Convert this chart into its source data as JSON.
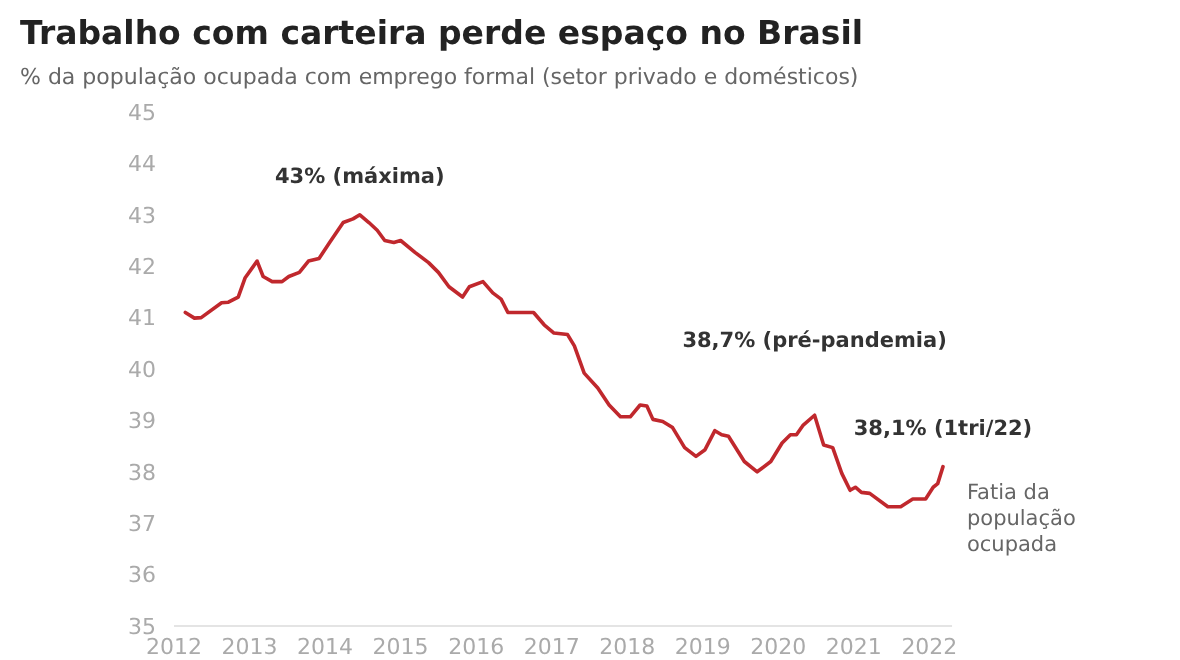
{
  "chart_data": {
    "type": "line",
    "title": "Trabalho com carteira perde espaço no Brasil",
    "subtitle": "% da população ocupada com emprego formal (setor privado e domésticos)",
    "ylim": [
      35,
      45
    ],
    "yticks": [
      35,
      36,
      37,
      38,
      39,
      40,
      41,
      42,
      43,
      44,
      45
    ],
    "xlim": [
      2012,
      2022.3
    ],
    "xticks": [
      2012,
      2013,
      2014,
      2015,
      2016,
      2017,
      2018,
      2019,
      2020,
      2021,
      2022
    ],
    "grid": false,
    "legend": false,
    "marker": "none",
    "line_style": "solid",
    "annotations": [
      {
        "text": "43% (máxima)",
        "x": 2014.46,
        "y": 43.0
      },
      {
        "text": "38,7% (pré-pandemia)",
        "x": 2020.48,
        "y": 39.1
      },
      {
        "text": "38,1% (1tri/22)",
        "x": 2022.18,
        "y": 38.1
      }
    ],
    "series": [
      {
        "name": "Fatia da população ocupada",
        "color": "#c0282d",
        "x": [
          2012.15,
          2012.27,
          2012.36,
          2012.63,
          2012.72,
          2012.85,
          2012.94,
          2013.1,
          2013.18,
          2013.3,
          2013.43,
          2013.52,
          2013.66,
          2013.78,
          2013.92,
          2014.06,
          2014.24,
          2014.37,
          2014.46,
          2014.58,
          2014.69,
          2014.79,
          2014.91,
          2015.0,
          2015.19,
          2015.37,
          2015.5,
          2015.64,
          2015.82,
          2015.91,
          2016.09,
          2016.22,
          2016.33,
          2016.42,
          2016.76,
          2016.9,
          2017.03,
          2017.21,
          2017.3,
          2017.43,
          2017.61,
          2017.76,
          2017.91,
          2018.04,
          2018.17,
          2018.26,
          2018.34,
          2018.47,
          2018.6,
          2018.76,
          2018.91,
          2019.03,
          2019.16,
          2019.25,
          2019.34,
          2019.55,
          2019.72,
          2019.9,
          2020.05,
          2020.16,
          2020.24,
          2020.33,
          2020.48,
          2020.6,
          2020.72,
          2020.84,
          2020.95,
          2021.02,
          2021.1,
          2021.21,
          2021.45,
          2021.62,
          2021.78,
          2021.95,
          2022.05,
          2022.11,
          2022.18
        ],
        "values": [
          41.1,
          40.99,
          41.0,
          41.29,
          41.3,
          41.4,
          41.77,
          42.1,
          41.8,
          41.7,
          41.7,
          41.8,
          41.88,
          42.1,
          42.15,
          42.46,
          42.85,
          42.92,
          43.0,
          42.85,
          42.7,
          42.5,
          42.46,
          42.5,
          42.27,
          42.07,
          41.88,
          41.6,
          41.4,
          41.6,
          41.7,
          41.48,
          41.36,
          41.1,
          41.1,
          40.86,
          40.7,
          40.67,
          40.45,
          39.92,
          39.63,
          39.3,
          39.07,
          39.07,
          39.3,
          39.28,
          39.02,
          38.98,
          38.86,
          38.47,
          38.3,
          38.43,
          38.8,
          38.72,
          38.69,
          38.2,
          38.0,
          38.2,
          38.56,
          38.72,
          38.72,
          38.91,
          39.1,
          38.52,
          38.47,
          37.97,
          37.64,
          37.7,
          37.6,
          37.58,
          37.32,
          37.32,
          37.47,
          37.47,
          37.7,
          37.77,
          38.1
        ]
      }
    ]
  }
}
